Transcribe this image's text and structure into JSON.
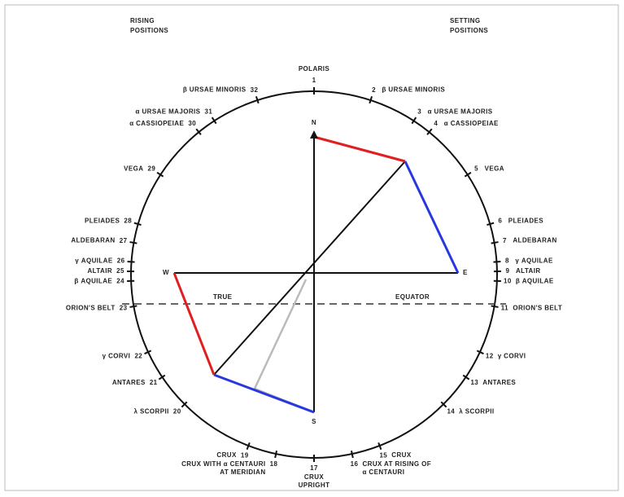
{
  "header": {
    "rising": [
      "RISING",
      "POSITIONS"
    ],
    "setting": [
      "SETTING",
      "POSITIONS"
    ]
  },
  "cardinals": {
    "north": "N",
    "east": "E",
    "south": "S",
    "west": "W"
  },
  "equator": {
    "left": "TRUE",
    "right": "EQUATOR"
  },
  "points": [
    {
      "number": 1,
      "star": [
        "POLARIS"
      ]
    },
    {
      "number": 2,
      "star": [
        "β URSAE MINORIS"
      ]
    },
    {
      "number": 3,
      "star": [
        "α URSAE MAJORIS"
      ]
    },
    {
      "number": 4,
      "star": [
        "α CASSIOPEIAE"
      ]
    },
    {
      "number": 5,
      "star": [
        "VEGA"
      ]
    },
    {
      "number": 6,
      "star": [
        "PLEIADES"
      ]
    },
    {
      "number": 7,
      "star": [
        "ALDEBARAN"
      ]
    },
    {
      "number": 8,
      "star": [
        "γ AQUILAE"
      ]
    },
    {
      "number": 9,
      "star": [
        "ALTAIR"
      ]
    },
    {
      "number": 10,
      "star": [
        "β AQUILAE"
      ]
    },
    {
      "number": 11,
      "star": [
        "ORION'S BELT"
      ]
    },
    {
      "number": 12,
      "star": [
        "γ CORVI"
      ]
    },
    {
      "number": 13,
      "star": [
        "ANTARES"
      ]
    },
    {
      "number": 14,
      "star": [
        "λ SCORPII"
      ]
    },
    {
      "number": 15,
      "star": [
        "CRUX"
      ]
    },
    {
      "number": 16,
      "star": [
        "CRUX AT RISING OF",
        "α CENTAURI"
      ]
    },
    {
      "number": 17,
      "star": [
        "CRUX",
        "UPRIGHT"
      ]
    },
    {
      "number": 18,
      "star": [
        "CRUX WITH α CENTAURI",
        "AT MERIDIAN"
      ]
    },
    {
      "number": 19,
      "star": [
        "CRUX"
      ]
    },
    {
      "number": 20,
      "star": [
        "λ SCORPII"
      ]
    },
    {
      "number": 21,
      "star": [
        "ANTARES"
      ]
    },
    {
      "number": 22,
      "star": [
        "γ CORVI"
      ]
    },
    {
      "number": 23,
      "star": [
        "ORION'S BELT"
      ]
    },
    {
      "number": 24,
      "star": [
        "β AQUILAE"
      ]
    },
    {
      "number": 25,
      "star": [
        "ALTAIR"
      ]
    },
    {
      "number": 26,
      "star": [
        "γ AQUILAE"
      ]
    },
    {
      "number": 27,
      "star": [
        "ALDEBARAN"
      ]
    },
    {
      "number": 28,
      "star": [
        "PLEIADES"
      ]
    },
    {
      "number": 29,
      "star": [
        "VEGA"
      ]
    },
    {
      "number": 30,
      "star": [
        "α CASSIOPEIAE"
      ]
    },
    {
      "number": 31,
      "star": [
        "α URSAE MAJORIS"
      ]
    },
    {
      "number": 32,
      "star": [
        "β URSAE MINORIS"
      ]
    }
  ]
}
